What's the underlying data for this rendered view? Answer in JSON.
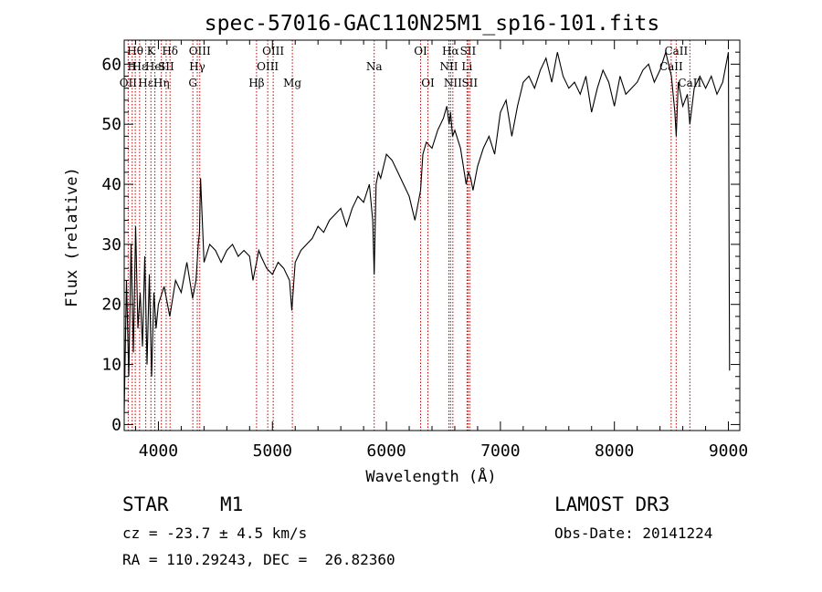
{
  "chart_data": {
    "type": "line",
    "title": "spec-57016-GAC110N25M1_sp16-101.fits",
    "xlabel": "Wavelength (Å)",
    "ylabel": "Flux (relative)",
    "xlim": [
      3700,
      9100
    ],
    "ylim": [
      -1,
      64
    ],
    "x_ticks": [
      4000,
      5000,
      6000,
      7000,
      8000,
      9000
    ],
    "y_ticks": [
      0,
      10,
      20,
      30,
      40,
      50,
      60
    ],
    "grid": false,
    "series": [
      {
        "name": "flux",
        "x": [
          3700,
          3720,
          3740,
          3760,
          3780,
          3800,
          3820,
          3840,
          3860,
          3880,
          3900,
          3920,
          3940,
          3960,
          3980,
          4000,
          4050,
          4100,
          4150,
          4200,
          4250,
          4300,
          4330,
          4350,
          4360,
          4370,
          4400,
          4450,
          4500,
          4550,
          4600,
          4650,
          4700,
          4750,
          4800,
          4830,
          4850,
          4861,
          4880,
          4900,
          4950,
          5000,
          5050,
          5100,
          5150,
          5170,
          5200,
          5250,
          5300,
          5350,
          5400,
          5450,
          5500,
          5550,
          5600,
          5650,
          5700,
          5750,
          5800,
          5850,
          5880,
          5893,
          5910,
          5930,
          5950,
          6000,
          6050,
          6100,
          6150,
          6200,
          6250,
          6300,
          6320,
          6350,
          6400,
          6450,
          6500,
          6530,
          6550,
          6563,
          6580,
          6600,
          6650,
          6700,
          6720,
          6740,
          6760,
          6780,
          6800,
          6850,
          6900,
          6950,
          7000,
          7050,
          7100,
          7150,
          7200,
          7250,
          7300,
          7350,
          7400,
          7450,
          7500,
          7550,
          7600,
          7650,
          7700,
          7750,
          7800,
          7850,
          7900,
          7950,
          8000,
          8050,
          8100,
          8150,
          8200,
          8250,
          8300,
          8350,
          8400,
          8450,
          8500,
          8530,
          8542,
          8560,
          8600,
          8640,
          8662,
          8700,
          8750,
          8800,
          8850,
          8900,
          8950,
          9000,
          9010
        ],
        "y": [
          2,
          24,
          8,
          30,
          12,
          33,
          16,
          22,
          13,
          28,
          10,
          25,
          8,
          22,
          16,
          20,
          23,
          18,
          24,
          22,
          27,
          21,
          24,
          30,
          32,
          41,
          27,
          30,
          29,
          27,
          29,
          30,
          28,
          29,
          28,
          24,
          26,
          27,
          29,
          28,
          26,
          25,
          27,
          26,
          24,
          19,
          27,
          29,
          30,
          31,
          33,
          32,
          34,
          35,
          36,
          33,
          36,
          38,
          37,
          40,
          34,
          25,
          40,
          42,
          41,
          45,
          44,
          42,
          40,
          38,
          34,
          39,
          45,
          47,
          46,
          49,
          51,
          53,
          50,
          52,
          48,
          49,
          46,
          40,
          42,
          41,
          39,
          41,
          43,
          46,
          48,
          45,
          52,
          54,
          48,
          53,
          57,
          58,
          56,
          59,
          61,
          57,
          62,
          58,
          56,
          57,
          55,
          58,
          52,
          56,
          59,
          57,
          53,
          58,
          55,
          56,
          57,
          59,
          60,
          57,
          59,
          62,
          58,
          52,
          48,
          57,
          53,
          55,
          50,
          56,
          58,
          56,
          58,
          55,
          57,
          62,
          9
        ],
        "color": "#000000"
      }
    ],
    "line_markers": [
      {
        "x": 3735,
        "tier": 2,
        "label": "OII"
      },
      {
        "x": 3770,
        "tier": 1,
        "label": "H"
      },
      {
        "x": 3797,
        "tier": 0,
        "label": "Hθ"
      },
      {
        "x": 3835,
        "tier": 1,
        "label": "Hε"
      },
      {
        "x": 3889,
        "tier": 2,
        "label": "Hε"
      },
      {
        "x": 3934,
        "tier": 0,
        "label": "K"
      },
      {
        "x": 3969,
        "tier": 1,
        "label": "Hel"
      },
      {
        "x": 4026,
        "tier": 2,
        "label": "Hη"
      },
      {
        "x": 4068,
        "tier": 1,
        "label": "SII"
      },
      {
        "x": 4102,
        "tier": 0,
        "label": "Hδ"
      },
      {
        "x": 4302,
        "tier": 2,
        "label": "G"
      },
      {
        "x": 4341,
        "tier": 1,
        "label": "Hγ"
      },
      {
        "x": 4363,
        "tier": 0,
        "label": "OIII"
      },
      {
        "x": 4861,
        "tier": 2,
        "label": "Hβ"
      },
      {
        "x": 4959,
        "tier": 1,
        "label": "OIII"
      },
      {
        "x": 5007,
        "tier": 0,
        "label": "OIII"
      },
      {
        "x": 5175,
        "tier": 2,
        "label": "Mg"
      },
      {
        "x": 5893,
        "tier": 1,
        "label": "Na"
      },
      {
        "x": 6300,
        "tier": 0,
        "label": "OI"
      },
      {
        "x": 6364,
        "tier": 2,
        "label": "OI"
      },
      {
        "x": 6548,
        "tier": 1,
        "label": "NII"
      },
      {
        "x": 6563,
        "tier": 0,
        "label": "Hα"
      },
      {
        "x": 6583,
        "tier": 2,
        "label": "NII"
      },
      {
        "x": 6707,
        "tier": 1,
        "label": "Li"
      },
      {
        "x": 6716,
        "tier": 0,
        "label": "SII"
      },
      {
        "x": 6731,
        "tier": 2,
        "label": "SII"
      },
      {
        "x": 8498,
        "tier": 1,
        "label": "CaII"
      },
      {
        "x": 8542,
        "tier": 0,
        "label": "CaII"
      },
      {
        "x": 8662,
        "tier": 2,
        "label": "CaII"
      }
    ],
    "marker_color": "#c00000"
  },
  "info": {
    "object_type": "STAR",
    "subclass": "M1",
    "survey": "LAMOST DR3",
    "velocity": "cz = -23.7 ± 4.5 km/s",
    "obs_date": "Obs-Date: 20141224",
    "coords": "RA = 110.29243, DEC =  26.82360"
  }
}
